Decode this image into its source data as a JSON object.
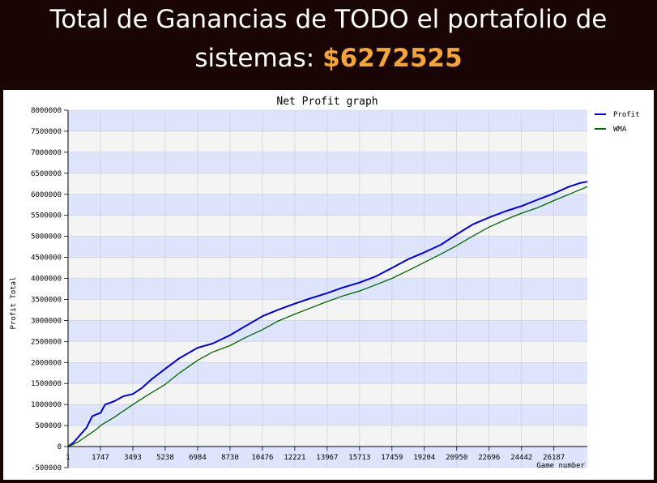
{
  "header": {
    "line1": "Total de Ganancias de TODO el portafolio de",
    "line2_prefix": "sistemas: ",
    "total": "$6272525"
  },
  "colors": {
    "profit": "#0000cc",
    "wma": "#006600",
    "band": "#dde4fb",
    "band_alt": "#f4f4f4",
    "accent": "#f4a53b"
  },
  "chart_data": {
    "type": "line",
    "title": "Net Profit graph",
    "xlabel": "Game number",
    "ylabel": "Profit Total",
    "xlim": [
      0,
      27990
    ],
    "ylim": [
      -500000,
      8000000
    ],
    "grid": true,
    "legend_position": "top-right",
    "x_ticks": [
      1,
      1747,
      3493,
      5238,
      6984,
      8730,
      10476,
      12221,
      13967,
      15713,
      17459,
      19204,
      20950,
      22696,
      24442,
      26187
    ],
    "x_tick_labels": [
      "1",
      "1747",
      "3493",
      "5238",
      "6984",
      "8730",
      "10476",
      "12221",
      "13967",
      "15713",
      "17459",
      "19204",
      "20950",
      "22696",
      "24442",
      "26187"
    ],
    "y_ticks": [
      -500000,
      0,
      500000,
      1000000,
      1500000,
      2000000,
      2500000,
      3000000,
      3500000,
      4000000,
      4500000,
      5000000,
      5500000,
      6000000,
      6500000,
      7000000,
      7500000,
      8000000
    ],
    "y_tick_labels": [
      "-500000",
      "0",
      "500000",
      "1000000",
      "1500000",
      "2000000",
      "2500000",
      "3000000",
      "3500000",
      "4000000",
      "4500000",
      "5000000",
      "5500000",
      "6000000",
      "6500000",
      "7000000",
      "7500000",
      "8000000"
    ],
    "series": [
      {
        "name": "Profit",
        "color": "#0000cc",
        "x": [
          1,
          300,
          700,
          1000,
          1300,
          1500,
          1747,
          2000,
          2500,
          3000,
          3493,
          4000,
          4500,
          5238,
          6000,
          6984,
          7800,
          8730,
          9500,
          10476,
          11300,
          12221,
          13100,
          13967,
          14800,
          15713,
          16600,
          17459,
          18300,
          19204,
          20100,
          20950,
          21800,
          22696,
          23600,
          24442,
          25300,
          26187,
          27000,
          27600,
          27990
        ],
        "values": [
          0,
          100000,
          300000,
          450000,
          720000,
          760000,
          800000,
          1000000,
          1080000,
          1200000,
          1250000,
          1400000,
          1600000,
          1850000,
          2100000,
          2350000,
          2450000,
          2650000,
          2850000,
          3100000,
          3250000,
          3400000,
          3530000,
          3650000,
          3780000,
          3900000,
          4050000,
          4250000,
          4450000,
          4620000,
          4800000,
          5050000,
          5280000,
          5450000,
          5600000,
          5720000,
          5870000,
          6020000,
          6180000,
          6270000,
          6300000
        ]
      },
      {
        "name": "WMA",
        "color": "#006600",
        "x": [
          1,
          500,
          1000,
          1500,
          1747,
          2500,
          3493,
          4200,
          5238,
          6000,
          6984,
          7800,
          8730,
          9500,
          10476,
          11300,
          12221,
          13100,
          13967,
          14800,
          15713,
          16600,
          17459,
          18300,
          19204,
          20100,
          20950,
          21800,
          22696,
          23600,
          24442,
          25300,
          26187,
          27000,
          27990
        ],
        "values": [
          0,
          100000,
          250000,
          400000,
          500000,
          700000,
          1000000,
          1200000,
          1480000,
          1750000,
          2050000,
          2250000,
          2400000,
          2580000,
          2780000,
          2980000,
          3150000,
          3300000,
          3450000,
          3580000,
          3700000,
          3850000,
          4000000,
          4180000,
          4380000,
          4580000,
          4780000,
          5000000,
          5220000,
          5400000,
          5550000,
          5680000,
          5850000,
          6000000,
          6180000
        ]
      }
    ]
  }
}
